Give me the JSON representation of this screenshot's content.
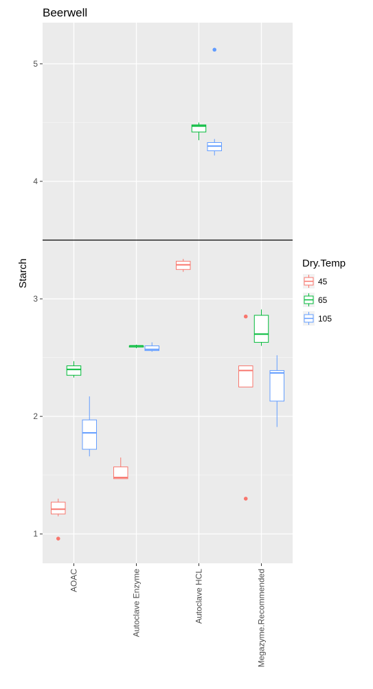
{
  "chart_data": {
    "type": "boxplot",
    "title": "Beerwell",
    "xlabel": "",
    "ylabel": "Starch",
    "ylim": [
      0.75,
      5.35
    ],
    "yticks": [
      1,
      2,
      3,
      4,
      5
    ],
    "grid": true,
    "background": "#ebebeb",
    "legend": {
      "title": "Dry.Temp",
      "placement": "right"
    },
    "categories": [
      "AOAC",
      "Autoclave Enzyme",
      "Autoclave HCL",
      "Megazyme.Recommended"
    ],
    "series": [
      {
        "name": "45",
        "color": "#f8766d",
        "boxes": [
          {
            "category": "AOAC",
            "whisker_low": 1.15,
            "q1": 1.17,
            "median": 1.21,
            "q3": 1.27,
            "whisker_high": 1.3,
            "outliers": [
              0.96
            ]
          },
          {
            "category": "Autoclave Enzyme",
            "whisker_low": 1.47,
            "q1": 1.47,
            "median": 1.48,
            "q3": 1.57,
            "whisker_high": 1.65,
            "outliers": []
          },
          {
            "category": "Autoclave HCL",
            "whisker_low": 3.23,
            "q1": 3.25,
            "median": 3.29,
            "q3": 3.32,
            "whisker_high": 3.34,
            "outliers": []
          },
          {
            "category": "Megazyme.Recommended",
            "whisker_low": 2.25,
            "q1": 2.25,
            "median": 2.39,
            "q3": 2.43,
            "whisker_high": 2.43,
            "outliers": [
              2.85,
              1.3
            ]
          }
        ]
      },
      {
        "name": "65",
        "color": "#00ba38",
        "boxes": [
          {
            "category": "AOAC",
            "whisker_low": 2.33,
            "q1": 2.35,
            "median": 2.4,
            "q3": 2.43,
            "whisker_high": 2.47,
            "outliers": []
          },
          {
            "category": "Autoclave Enzyme",
            "whisker_low": 2.58,
            "q1": 2.59,
            "median": 2.6,
            "q3": 2.6,
            "whisker_high": 2.61,
            "outliers": []
          },
          {
            "category": "Autoclave HCL",
            "whisker_low": 4.35,
            "q1": 4.42,
            "median": 4.47,
            "q3": 4.48,
            "whisker_high": 4.5,
            "outliers": []
          },
          {
            "category": "Megazyme.Recommended",
            "whisker_low": 2.6,
            "q1": 2.63,
            "median": 2.7,
            "q3": 2.86,
            "whisker_high": 2.91,
            "outliers": []
          }
        ]
      },
      {
        "name": "105",
        "color": "#619cff",
        "boxes": [
          {
            "category": "AOAC",
            "whisker_low": 1.66,
            "q1": 1.72,
            "median": 1.86,
            "q3": 1.97,
            "whisker_high": 2.17,
            "outliers": []
          },
          {
            "category": "Autoclave Enzyme",
            "whisker_low": 2.55,
            "q1": 2.56,
            "median": 2.57,
            "q3": 2.6,
            "whisker_high": 2.63,
            "outliers": []
          },
          {
            "category": "Autoclave HCL",
            "whisker_low": 4.22,
            "q1": 4.26,
            "median": 4.3,
            "q3": 4.33,
            "whisker_high": 4.36,
            "outliers": [
              5.12
            ]
          },
          {
            "category": "Megazyme.Recommended",
            "whisker_low": 1.91,
            "q1": 2.13,
            "median": 2.37,
            "q3": 2.39,
            "whisker_high": 2.52,
            "outliers": []
          }
        ]
      }
    ],
    "annotations": [
      {
        "type": "hline",
        "y": 3.5,
        "color": "#000000"
      }
    ]
  }
}
